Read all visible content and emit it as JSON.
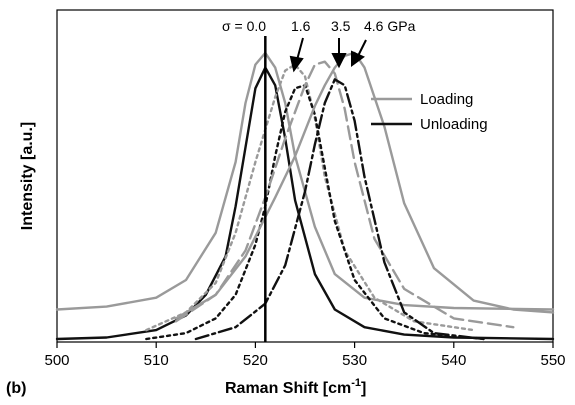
{
  "chart_data": {
    "type": "line",
    "xlabel": "Raman Shift [cm",
    "xlabel_sup": "-1",
    "xlabel_end": "]",
    "ylabel": "Intensity [a.u.]",
    "panel_label": "(b)",
    "xlim": [
      500,
      550
    ],
    "ylim": [
      0,
      1.0
    ],
    "x_ticks": [
      "500",
      "510",
      "520",
      "530",
      "540",
      "550"
    ],
    "grid": false,
    "legend": {
      "placement": "top-right",
      "entries": [
        {
          "label": "Loading",
          "color": "#9a9a9a"
        },
        {
          "label": "Unloading",
          "color": "#111111"
        }
      ]
    },
    "annotations": {
      "sigma_label": "σ = 0.0",
      "reference_line_x": 521.0,
      "pressure_labels": [
        "1.6",
        "3.5",
        "4.6 GPa"
      ]
    },
    "series": [
      {
        "group": "Loading",
        "pressure_gpa": 0.0,
        "dash": "solid",
        "color": "#9a9a9a",
        "x": [
          500,
          505,
          510,
          513,
          516,
          518,
          519,
          520,
          521,
          522,
          523,
          524,
          526,
          528,
          531,
          535,
          540,
          550
        ],
        "y": [
          0.1,
          0.11,
          0.14,
          0.2,
          0.36,
          0.6,
          0.8,
          0.93,
          0.97,
          0.92,
          0.8,
          0.62,
          0.38,
          0.22,
          0.14,
          0.115,
          0.105,
          0.1
        ]
      },
      {
        "group": "Unloading",
        "pressure_gpa": 0.0,
        "dash": "solid",
        "color": "#111111",
        "x": [
          500,
          505,
          510,
          513,
          515,
          517,
          518,
          519,
          520,
          521,
          522,
          523,
          524,
          526,
          528,
          531,
          535,
          540,
          550
        ],
        "y": [
          0.0,
          0.005,
          0.03,
          0.08,
          0.15,
          0.28,
          0.45,
          0.65,
          0.85,
          0.92,
          0.86,
          0.68,
          0.47,
          0.22,
          0.1,
          0.04,
          0.015,
          0.005,
          0.0
        ]
      },
      {
        "group": "Loading",
        "pressure_gpa": 1.6,
        "dash": "dot",
        "color": "#9a9a9a",
        "x": [
          509,
          513,
          516,
          518,
          520,
          522,
          523,
          524,
          525,
          526,
          527,
          529,
          532,
          536,
          542
        ],
        "y": [
          0.03,
          0.09,
          0.19,
          0.36,
          0.6,
          0.82,
          0.91,
          0.93,
          0.89,
          0.75,
          0.55,
          0.3,
          0.14,
          0.06,
          0.03
        ]
      },
      {
        "group": "Unloading",
        "pressure_gpa": 1.6,
        "dash": "dot",
        "color": "#111111",
        "x": [
          509,
          513,
          516,
          518,
          520,
          521,
          522,
          523,
          524,
          525,
          526,
          527,
          528,
          530,
          533,
          537,
          543
        ],
        "y": [
          0.0,
          0.02,
          0.07,
          0.15,
          0.32,
          0.45,
          0.62,
          0.77,
          0.85,
          0.86,
          0.76,
          0.58,
          0.4,
          0.2,
          0.07,
          0.02,
          0.0
        ]
      },
      {
        "group": "Loading",
        "pressure_gpa": 3.5,
        "dash": "dash",
        "color": "#9a9a9a",
        "x": [
          512,
          516,
          519,
          521,
          523,
          525,
          526,
          527,
          528,
          529,
          530,
          532,
          535,
          540,
          546
        ],
        "y": [
          0.06,
          0.15,
          0.3,
          0.48,
          0.68,
          0.86,
          0.93,
          0.94,
          0.9,
          0.78,
          0.6,
          0.34,
          0.17,
          0.07,
          0.04
        ]
      },
      {
        "group": "Unloading",
        "pressure_gpa": 3.5,
        "dash": "dashdot",
        "color": "#111111",
        "x": [
          514,
          518,
          521,
          523,
          525,
          526,
          527,
          528,
          529,
          530,
          531,
          533,
          535,
          538,
          543
        ],
        "y": [
          0.0,
          0.04,
          0.12,
          0.25,
          0.5,
          0.66,
          0.8,
          0.88,
          0.86,
          0.74,
          0.55,
          0.26,
          0.09,
          0.02,
          0.0
        ]
      },
      {
        "group": "Loading",
        "pressure_gpa": 4.6,
        "dash": "solid",
        "color": "#9a9a9a",
        "x": [
          512,
          516,
          519,
          522,
          524,
          526,
          527,
          528,
          529,
          530,
          531,
          533,
          535,
          538,
          542,
          546,
          550
        ],
        "y": [
          0.07,
          0.15,
          0.28,
          0.48,
          0.62,
          0.79,
          0.86,
          0.92,
          0.96,
          0.97,
          0.92,
          0.72,
          0.46,
          0.24,
          0.13,
          0.1,
          0.09
        ]
      }
    ]
  }
}
